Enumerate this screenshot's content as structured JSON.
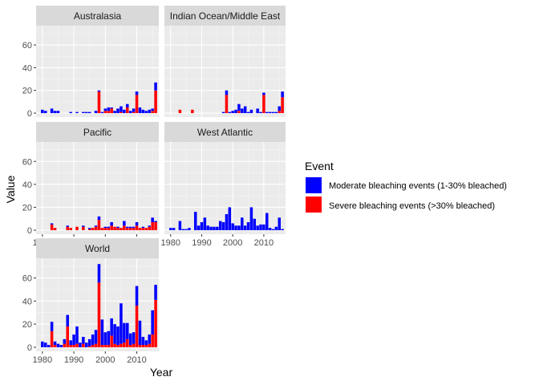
{
  "chart_data": {
    "type": "bar",
    "stacked": true,
    "xlabel": "Year",
    "ylabel": "Value",
    "xlim": [
      1978,
      2017
    ],
    "ylim": [
      -3.5,
      77
    ],
    "yticks": [
      0,
      20,
      40,
      60
    ],
    "xticks": [
      1980,
      1990,
      2000,
      2010
    ],
    "grid": true,
    "legend": {
      "title": "Event",
      "position": "right",
      "entries": [
        {
          "key": "moderate",
          "label": "Moderate bleaching events (1-30% bleached)",
          "color": "#0000ff"
        },
        {
          "key": "severe",
          "label": "Severe bleaching events (>30% bleached)",
          "color": "#ff0000"
        }
      ]
    },
    "years": [
      1980,
      1981,
      1982,
      1983,
      1984,
      1985,
      1986,
      1987,
      1988,
      1989,
      1990,
      1991,
      1992,
      1993,
      1994,
      1995,
      1996,
      1997,
      1998,
      1999,
      2000,
      2001,
      2002,
      2003,
      2004,
      2005,
      2006,
      2007,
      2008,
      2009,
      2010,
      2011,
      2012,
      2013,
      2014,
      2015,
      2016
    ],
    "panels": [
      {
        "name": "Australasia",
        "severe": [
          0,
          0,
          0,
          0,
          0,
          0,
          0,
          0,
          0,
          0,
          0,
          0,
          0,
          0,
          0,
          0,
          0,
          0,
          19,
          0,
          2,
          2,
          4,
          0,
          0,
          1,
          0,
          5,
          0,
          1,
          16,
          0,
          0,
          0,
          0,
          2,
          20
        ],
        "moderate": [
          3,
          2,
          0,
          4,
          2,
          2,
          0,
          0,
          0,
          1,
          0,
          1,
          0,
          1,
          1,
          1,
          0,
          2,
          1,
          1,
          2,
          3,
          1,
          2,
          4,
          5,
          3,
          3,
          2,
          3,
          3,
          5,
          3,
          2,
          3,
          2,
          7
        ]
      },
      {
        "name": "Indian Ocean/Middle East",
        "severe": [
          0,
          0,
          0,
          3,
          0,
          0,
          0,
          3,
          0,
          0,
          0,
          0,
          0,
          0,
          0,
          0,
          0,
          0,
          16,
          0,
          0,
          0,
          2,
          0,
          0,
          0,
          0,
          0,
          0,
          0,
          16,
          0,
          0,
          0,
          0,
          2,
          14
        ],
        "moderate": [
          0,
          0,
          0,
          0,
          0,
          0,
          0,
          0,
          0,
          0,
          0,
          0,
          0,
          0,
          0,
          0,
          0,
          1,
          4,
          1,
          2,
          3,
          6,
          4,
          6,
          1,
          3,
          0,
          4,
          1,
          2,
          1,
          1,
          1,
          1,
          4,
          5
        ]
      },
      {
        "name": "Pacific",
        "severe": [
          0,
          0,
          0,
          5,
          2,
          0,
          0,
          0,
          3,
          2,
          0,
          3,
          0,
          3,
          0,
          1,
          2,
          3,
          9,
          2,
          2,
          2,
          4,
          3,
          2,
          2,
          4,
          2,
          2,
          2,
          4,
          2,
          2,
          2,
          3,
          7,
          7
        ],
        "moderate": [
          0,
          0,
          0,
          1,
          0,
          0,
          0,
          0,
          1,
          0,
          0,
          0,
          0,
          1,
          0,
          1,
          0,
          1,
          3,
          0,
          1,
          1,
          3,
          0,
          1,
          0,
          4,
          1,
          1,
          1,
          3,
          0,
          1,
          0,
          1,
          4,
          1
        ]
      },
      {
        "name": "West Atlantic",
        "severe": [
          0,
          0,
          0,
          0,
          0,
          0,
          0,
          0,
          0,
          0,
          0,
          0,
          0,
          0,
          0,
          0,
          0,
          0,
          0,
          0,
          0,
          0,
          0,
          0,
          0,
          0,
          0,
          0,
          0,
          0,
          0,
          0,
          0,
          0,
          0,
          0,
          0
        ],
        "moderate": [
          2,
          2,
          0,
          8,
          1,
          1,
          2,
          0,
          16,
          4,
          7,
          11,
          4,
          3,
          3,
          3,
          8,
          7,
          14,
          20,
          6,
          4,
          4,
          11,
          4,
          7,
          20,
          10,
          4,
          5,
          5,
          15,
          2,
          1,
          3,
          11,
          1
        ]
      },
      {
        "name": "World",
        "severe": [
          0,
          0,
          0,
          14,
          2,
          0,
          0,
          3,
          18,
          2,
          2,
          3,
          0,
          3,
          0,
          1,
          2,
          3,
          56,
          2,
          2,
          2,
          10,
          3,
          2,
          3,
          4,
          7,
          2,
          3,
          36,
          2,
          2,
          2,
          3,
          11,
          41
        ],
        "moderate": [
          5,
          4,
          2,
          8,
          3,
          3,
          2,
          4,
          10,
          4,
          9,
          15,
          4,
          6,
          4,
          6,
          9,
          12,
          16,
          22,
          11,
          12,
          15,
          17,
          16,
          35,
          17,
          14,
          10,
          10,
          17,
          21,
          7,
          4,
          8,
          21,
          13
        ]
      }
    ]
  }
}
